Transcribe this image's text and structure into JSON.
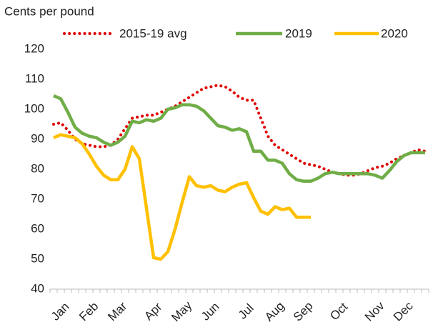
{
  "chart_data": {
    "type": "line",
    "y_label": "Cents per pound",
    "categories": [
      null,
      "Jan",
      null,
      null,
      null,
      "Feb",
      null,
      null,
      null,
      "Mar",
      null,
      null,
      null,
      null,
      "Apr",
      null,
      null,
      null,
      "May",
      null,
      null,
      null,
      "Jun",
      null,
      null,
      null,
      null,
      "Jul",
      null,
      null,
      null,
      "Aug",
      null,
      null,
      null,
      "Sep",
      null,
      null,
      null,
      null,
      "Oct",
      null,
      null,
      null,
      null,
      "Nov",
      null,
      null,
      null,
      "Dec",
      null,
      null,
      null
    ],
    "series": [
      {
        "name": "2015-19 avg",
        "color": "#e00000",
        "style": "dotted",
        "values": [
          95,
          95.5,
          93,
          90,
          88.5,
          88,
          87.5,
          87.5,
          88,
          90,
          93.5,
          97,
          97.5,
          98,
          98,
          99,
          100,
          101,
          102.5,
          104,
          105.5,
          107,
          107.5,
          108,
          107.5,
          106,
          104,
          103,
          103,
          97,
          91,
          88,
          86.5,
          85,
          83.5,
          82,
          81.5,
          81,
          80,
          79,
          78.5,
          78,
          78,
          78.5,
          79.5,
          80.5,
          81,
          82,
          83.5,
          84.5,
          85.5,
          86.5,
          86
        ]
      },
      {
        "name": "2019",
        "color": "#70ad47",
        "style": "solid",
        "values": [
          104.5,
          103.5,
          99,
          94,
          92,
          91,
          90.5,
          89,
          88,
          89,
          91,
          96,
          95.5,
          96.5,
          96,
          97,
          100,
          100.5,
          101.5,
          101.5,
          101,
          99.5,
          97,
          94.5,
          94,
          93,
          93.5,
          92.5,
          86,
          86,
          83,
          83,
          82,
          78.5,
          76.5,
          76,
          76,
          77,
          78.5,
          79,
          78.5,
          78.5,
          78.5,
          78.5,
          78.5,
          78,
          77,
          79.5,
          82.5,
          84.5,
          85.5,
          85.5,
          85.5
        ]
      },
      {
        "name": "2020",
        "color": "#ffc000",
        "style": "solid",
        "values": [
          90.5,
          91.5,
          91,
          90.5,
          88.5,
          85,
          81,
          78,
          76.5,
          76.5,
          80,
          87.5,
          83.5,
          67,
          50.5,
          50,
          52.5,
          60,
          69,
          77.5,
          74.5,
          74,
          74.5,
          73,
          72.5,
          74,
          75,
          75.5,
          70.5,
          66,
          65,
          67.5,
          66.5,
          67,
          64,
          64,
          64,
          null,
          null,
          null,
          null,
          null,
          null,
          null,
          null,
          null,
          null,
          null,
          null,
          null,
          null,
          null,
          null
        ]
      }
    ],
    "ylim": [
      40,
      120
    ],
    "yticks": [
      40,
      50,
      60,
      70,
      80,
      90,
      100,
      110,
      120
    ],
    "grid": false,
    "legend": "top"
  }
}
